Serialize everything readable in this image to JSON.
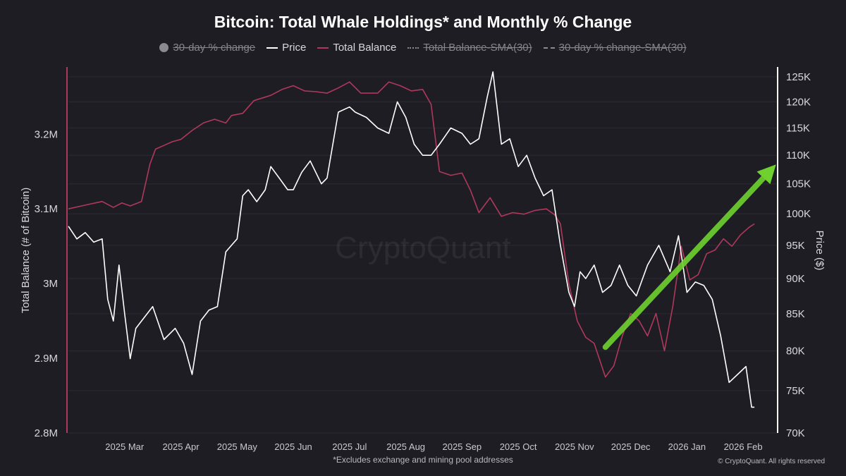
{
  "chart_data": {
    "type": "line",
    "title": "Bitcoin: Total Whale Holdings* and Monthly % Change",
    "legend": [
      {
        "name": "30-day % change",
        "style": "dot",
        "enabled": false
      },
      {
        "name": "Price",
        "style": "line",
        "enabled": true,
        "color": "#ffffff"
      },
      {
        "name": "Total Balance",
        "style": "line",
        "enabled": true,
        "color": "#b0385a"
      },
      {
        "name": "Total Balance-SMA(30)",
        "style": "dotted",
        "enabled": false
      },
      {
        "name": "30-day % change-SMA(30)",
        "style": "dashed",
        "enabled": false
      }
    ],
    "y_left": {
      "label": "Total Balance (# of Bitcoin)",
      "range": [
        2800000,
        3290000
      ],
      "ticks": [
        2800000,
        2900000,
        3000000,
        3100000,
        3200000
      ],
      "tick_labels": [
        "2.8M",
        "2.9M",
        "3M",
        "3.1M",
        "3.2M"
      ]
    },
    "y_right": {
      "label": "Price ($)",
      "scale": "log",
      "range": [
        70000,
        127000
      ],
      "ticks": [
        70000,
        75000,
        80000,
        85000,
        90000,
        95000,
        100000,
        105000,
        110000,
        115000,
        120000,
        125000
      ],
      "tick_labels": [
        "70K",
        "75K",
        "80K",
        "85K",
        "90K",
        "95K",
        "100K",
        "105K",
        "110K",
        "115K",
        "120K",
        "125K"
      ]
    },
    "x_axis": {
      "range": [
        0,
        12.6
      ],
      "ticks": [
        1,
        2,
        3,
        4,
        5,
        6,
        7,
        8,
        9,
        10,
        11,
        12
      ],
      "tick_labels": [
        "2025 Mar",
        "2025 Apr",
        "2025 May",
        "2025 Jun",
        "2025 Jul",
        "2025 Aug",
        "2025 Sep",
        "2025 Oct",
        "2025 Nov",
        "2025 Dec",
        "2026 Jan",
        "2026 Feb"
      ]
    },
    "series": [
      {
        "name": "Price",
        "axis": "right",
        "color": "#ffffff",
        "x": [
          0.0,
          0.15,
          0.3,
          0.45,
          0.6,
          0.7,
          0.8,
          0.9,
          1.0,
          1.1,
          1.2,
          1.3,
          1.5,
          1.7,
          1.9,
          2.05,
          2.2,
          2.35,
          2.5,
          2.65,
          2.8,
          2.9,
          3.0,
          3.1,
          3.2,
          3.35,
          3.5,
          3.6,
          3.75,
          3.9,
          4.0,
          4.15,
          4.3,
          4.5,
          4.6,
          4.8,
          5.0,
          5.1,
          5.3,
          5.5,
          5.7,
          5.85,
          6.0,
          6.15,
          6.3,
          6.45,
          6.6,
          6.8,
          7.0,
          7.15,
          7.3,
          7.45,
          7.55,
          7.7,
          7.85,
          8.0,
          8.15,
          8.3,
          8.45,
          8.6,
          8.75,
          8.9,
          9.0,
          9.1,
          9.2,
          9.35,
          9.5,
          9.65,
          9.8,
          9.95,
          10.1,
          10.3,
          10.5,
          10.7,
          10.85,
          11.0,
          11.15,
          11.3,
          11.45,
          11.6,
          11.75,
          11.9,
          12.05,
          12.15,
          12.2
        ],
        "y": [
          98000,
          96000,
          97000,
          95500,
          96000,
          87000,
          84000,
          92000,
          85000,
          79000,
          83000,
          84000,
          86000,
          81500,
          83000,
          81000,
          77000,
          84000,
          85500,
          86000,
          94000,
          95000,
          96000,
          103000,
          104000,
          102000,
          104000,
          108000,
          106000,
          104000,
          104000,
          107000,
          109000,
          105000,
          106000,
          118000,
          119000,
          118000,
          117000,
          115000,
          114000,
          120000,
          117000,
          112000,
          110000,
          110000,
          112000,
          115000,
          114000,
          112000,
          113000,
          121000,
          126000,
          112000,
          113000,
          108000,
          110000,
          106000,
          103000,
          104000,
          95000,
          88000,
          86000,
          91000,
          90000,
          92000,
          88000,
          89000,
          92000,
          89000,
          87500,
          92000,
          95000,
          91000,
          96500,
          88000,
          89500,
          89000,
          87000,
          82000,
          76000,
          77000,
          78000,
          73000,
          73000
        ]
      },
      {
        "name": "Total Balance",
        "axis": "left",
        "color": "#b0385a",
        "x": [
          0.0,
          0.3,
          0.6,
          0.8,
          0.95,
          1.1,
          1.3,
          1.45,
          1.55,
          1.7,
          1.85,
          2.0,
          2.2,
          2.4,
          2.6,
          2.8,
          2.9,
          3.1,
          3.3,
          3.6,
          3.8,
          4.0,
          4.2,
          4.4,
          4.6,
          4.8,
          5.0,
          5.2,
          5.35,
          5.5,
          5.7,
          5.9,
          6.1,
          6.3,
          6.45,
          6.6,
          6.8,
          7.0,
          7.15,
          7.3,
          7.5,
          7.7,
          7.9,
          8.1,
          8.3,
          8.5,
          8.65,
          8.75,
          8.9,
          9.05,
          9.2,
          9.35,
          9.55,
          9.7,
          9.85,
          10.0,
          10.15,
          10.3,
          10.45,
          10.6,
          10.75,
          10.9,
          11.05,
          11.2,
          11.35,
          11.5,
          11.65,
          11.8,
          11.95,
          12.1,
          12.2
        ],
        "y": [
          3100000,
          3105000,
          3110000,
          3102000,
          3108000,
          3104000,
          3110000,
          3160000,
          3180000,
          3185000,
          3190000,
          3193000,
          3205000,
          3215000,
          3220000,
          3215000,
          3225000,
          3228000,
          3245000,
          3252000,
          3260000,
          3265000,
          3258000,
          3257000,
          3255000,
          3262000,
          3270000,
          3255000,
          3255000,
          3255000,
          3270000,
          3265000,
          3258000,
          3260000,
          3240000,
          3150000,
          3145000,
          3148000,
          3125000,
          3095000,
          3115000,
          3090000,
          3095000,
          3093000,
          3098000,
          3100000,
          3092000,
          3080000,
          3000000,
          2950000,
          2928000,
          2920000,
          2875000,
          2890000,
          2930000,
          2960000,
          2950000,
          2930000,
          2960000,
          2910000,
          2970000,
          3050000,
          3005000,
          3012000,
          3040000,
          3045000,
          3060000,
          3050000,
          3065000,
          3075000,
          3080000
        ]
      }
    ],
    "annotations": [
      {
        "type": "arrow",
        "color": "#6ed12d",
        "from": {
          "x": 9.55,
          "y_price": 80500
        },
        "to": {
          "x": 12.55,
          "y_price": 108000
        },
        "description": "hand-drawn green upward arrow"
      }
    ],
    "watermark": "CryptoQuant"
  },
  "footnote": "*Excludes exchange and mining pool addresses",
  "copyright": "© CryptoQuant. All rights reserved"
}
